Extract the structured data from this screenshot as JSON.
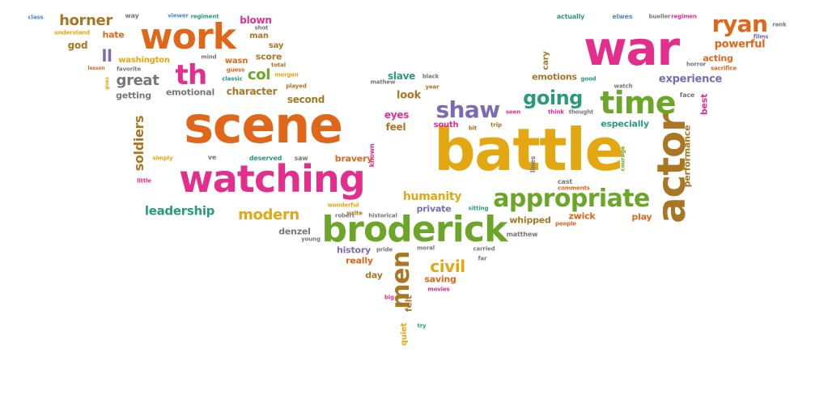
{
  "palette": {
    "orange": "#E0661A",
    "pink": "#E42E8E",
    "gold": "#E3A712",
    "green": "#6BA628",
    "teal": "#2A9A7C",
    "brown": "#A97624",
    "purple": "#7A6BB5",
    "gray": "#777777",
    "blue": "#4F88C9"
  },
  "words": [
    {
      "text": "scene",
      "color": "orange"
    },
    {
      "text": "battle",
      "color": "gold"
    },
    {
      "text": "war",
      "color": "pink"
    },
    {
      "text": "watching",
      "color": "pink"
    },
    {
      "text": "broderick",
      "color": "green"
    },
    {
      "text": "work",
      "color": "orange"
    },
    {
      "text": "actor",
      "color": "brown"
    },
    {
      "text": "time",
      "color": "green"
    },
    {
      "text": "th",
      "color": "pink"
    },
    {
      "text": "appropriate",
      "color": "green"
    },
    {
      "text": "men",
      "color": "brown"
    },
    {
      "text": "shaw",
      "color": "purple"
    },
    {
      "text": "going",
      "color": "teal"
    },
    {
      "text": "ryan",
      "color": "orange"
    },
    {
      "text": "horner",
      "color": "brown"
    },
    {
      "text": "modern",
      "color": "gold"
    },
    {
      "text": "civil",
      "color": "gold"
    },
    {
      "text": "great",
      "color": "gray"
    },
    {
      "text": "humanity",
      "color": "gold"
    },
    {
      "text": "leadership",
      "color": "teal"
    },
    {
      "text": "col",
      "color": "green"
    },
    {
      "text": "soldiers",
      "color": "brown"
    },
    {
      "text": "ll",
      "color": "purple"
    },
    {
      "text": "powerful",
      "color": "orange"
    },
    {
      "text": "experience",
      "color": "purple"
    },
    {
      "text": "emotions",
      "color": "brown"
    },
    {
      "text": "character",
      "color": "brown"
    },
    {
      "text": "look",
      "color": "brown"
    },
    {
      "text": "especially",
      "color": "teal"
    },
    {
      "text": "emotional",
      "color": "gray"
    },
    {
      "text": "blown",
      "color": "pink"
    },
    {
      "text": "eyes",
      "color": "pink"
    },
    {
      "text": "feel",
      "color": "brown"
    },
    {
      "text": "bravery",
      "color": "orange"
    },
    {
      "text": "acting",
      "color": "orange"
    },
    {
      "text": "performance",
      "color": "brown"
    },
    {
      "text": "saving",
      "color": "orange"
    },
    {
      "text": "history",
      "color": "purple"
    },
    {
      "text": "private",
      "color": "purple"
    },
    {
      "text": "whipped",
      "color": "brown"
    },
    {
      "text": "zwick",
      "color": "orange"
    },
    {
      "text": "play",
      "color": "orange"
    },
    {
      "text": "denzel",
      "color": "gray"
    },
    {
      "text": "really",
      "color": "orange"
    },
    {
      "text": "day",
      "color": "brown"
    },
    {
      "text": "second",
      "color": "brown"
    },
    {
      "text": "score",
      "color": "brown"
    },
    {
      "text": "washington",
      "color": "gold"
    },
    {
      "text": "god",
      "color": "brown"
    },
    {
      "text": "hate",
      "color": "orange"
    },
    {
      "text": "getting",
      "color": "gray"
    },
    {
      "text": "slave",
      "color": "teal"
    },
    {
      "text": "south",
      "color": "pink"
    },
    {
      "text": "man",
      "color": "brown"
    },
    {
      "text": "say",
      "color": "brown"
    },
    {
      "text": "wasn",
      "color": "orange"
    },
    {
      "text": "felt",
      "color": "brown"
    },
    {
      "text": "quiet",
      "color": "gold"
    },
    {
      "text": "best",
      "color": "pink"
    },
    {
      "text": "cary",
      "color": "brown"
    },
    {
      "text": "class",
      "color": "blue"
    },
    {
      "text": "way",
      "color": "gray"
    },
    {
      "text": "viewer",
      "color": "blue"
    },
    {
      "text": "regiment",
      "color": "teal"
    },
    {
      "text": "shot",
      "color": "gray"
    },
    {
      "text": "understand",
      "color": "gold"
    },
    {
      "text": "mind",
      "color": "gray"
    },
    {
      "text": "guess",
      "color": "orange"
    },
    {
      "text": "classic",
      "color": "teal"
    },
    {
      "text": "morgan",
      "color": "gold"
    },
    {
      "text": "total",
      "color": "brown"
    },
    {
      "text": "played",
      "color": "brown"
    },
    {
      "text": "favorite",
      "color": "gray"
    },
    {
      "text": "lesson",
      "color": "orange"
    },
    {
      "text": "goes",
      "color": "gold"
    },
    {
      "text": "simply",
      "color": "gold"
    },
    {
      "text": "little",
      "color": "pink"
    },
    {
      "text": "ve",
      "color": "gray"
    },
    {
      "text": "deserved",
      "color": "teal"
    },
    {
      "text": "saw",
      "color": "gray"
    },
    {
      "text": "known",
      "color": "pink"
    },
    {
      "text": "mathew",
      "color": "gray"
    },
    {
      "text": "black",
      "color": "gray"
    },
    {
      "text": "year",
      "color": "brown"
    },
    {
      "text": "bit",
      "color": "brown"
    },
    {
      "text": "trip",
      "color": "brown"
    },
    {
      "text": "seen",
      "color": "pink"
    },
    {
      "text": "think",
      "color": "pink"
    },
    {
      "text": "thought",
      "color": "gray"
    },
    {
      "text": "watch",
      "color": "gray"
    },
    {
      "text": "face",
      "color": "gray"
    },
    {
      "text": "good",
      "color": "teal"
    },
    {
      "text": "actually",
      "color": "teal"
    },
    {
      "text": "elwes",
      "color": "blue"
    },
    {
      "text": "bueller",
      "color": "gray"
    },
    {
      "text": "regimen",
      "color": "pink"
    },
    {
      "text": "rank",
      "color": "gray"
    },
    {
      "text": "films",
      "color": "purple"
    },
    {
      "text": "horror",
      "color": "gray"
    },
    {
      "text": "sacrifice",
      "color": "orange"
    },
    {
      "text": "courage",
      "color": "green"
    },
    {
      "text": "lines",
      "color": "gray"
    },
    {
      "text": "cast",
      "color": "gray"
    },
    {
      "text": "comments",
      "color": "orange"
    },
    {
      "text": "sitting",
      "color": "teal"
    },
    {
      "text": "people",
      "color": "orange"
    },
    {
      "text": "matthew",
      "color": "gray"
    },
    {
      "text": "wonderful",
      "color": "gold"
    },
    {
      "text": "write",
      "color": "brown"
    },
    {
      "text": "robert",
      "color": "gray"
    },
    {
      "text": "historical",
      "color": "gray"
    },
    {
      "text": "young",
      "color": "gray"
    },
    {
      "text": "pride",
      "color": "gray"
    },
    {
      "text": "moral",
      "color": "gray"
    },
    {
      "text": "carried",
      "color": "gray"
    },
    {
      "text": "far",
      "color": "gray"
    },
    {
      "text": "movies",
      "color": "pink"
    },
    {
      "text": "big",
      "color": "pink"
    },
    {
      "text": "try",
      "color": "teal"
    }
  ]
}
